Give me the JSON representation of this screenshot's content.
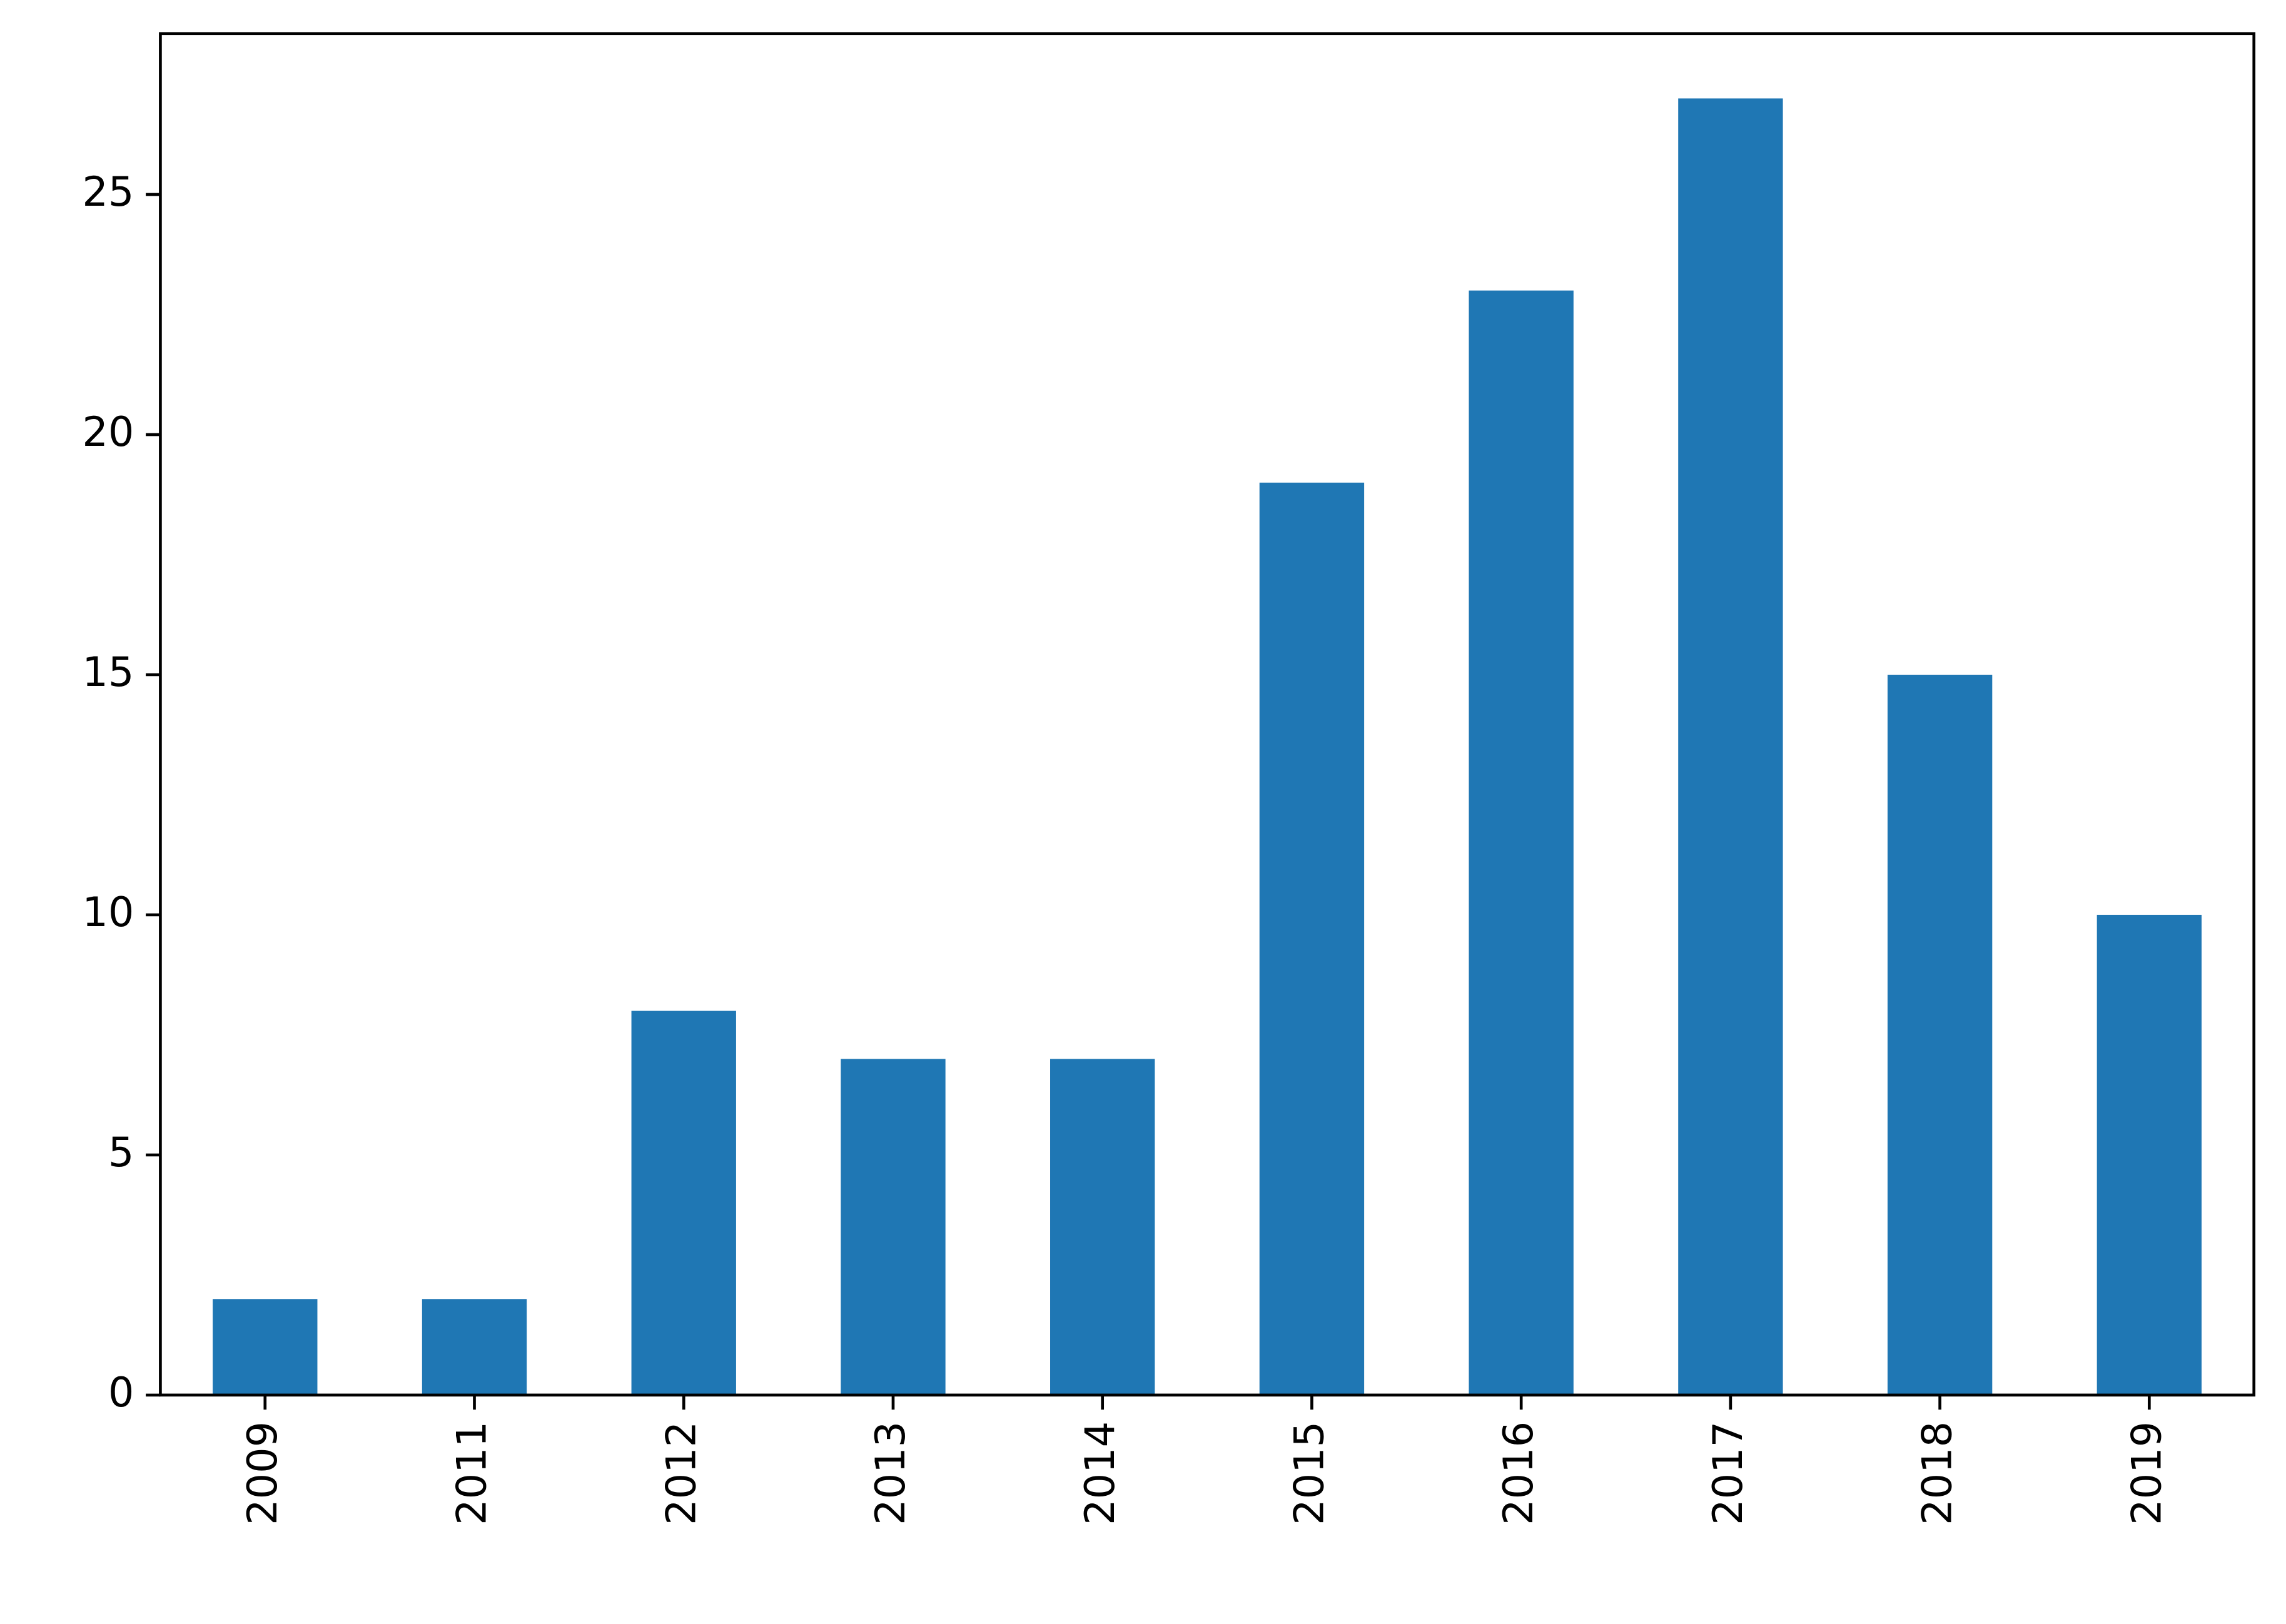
{
  "chart_data": {
    "type": "bar",
    "categories": [
      "2009",
      "2011",
      "2012",
      "2013",
      "2014",
      "2015",
      "2016",
      "2017",
      "2018",
      "2019"
    ],
    "values": [
      2,
      2,
      8,
      7,
      7,
      19,
      23,
      27,
      15,
      10
    ],
    "color": "#1f77b4",
    "ylim": [
      0,
      28.35
    ],
    "yticks": [
      0,
      5,
      10,
      15,
      20,
      25
    ],
    "grid": false
  }
}
